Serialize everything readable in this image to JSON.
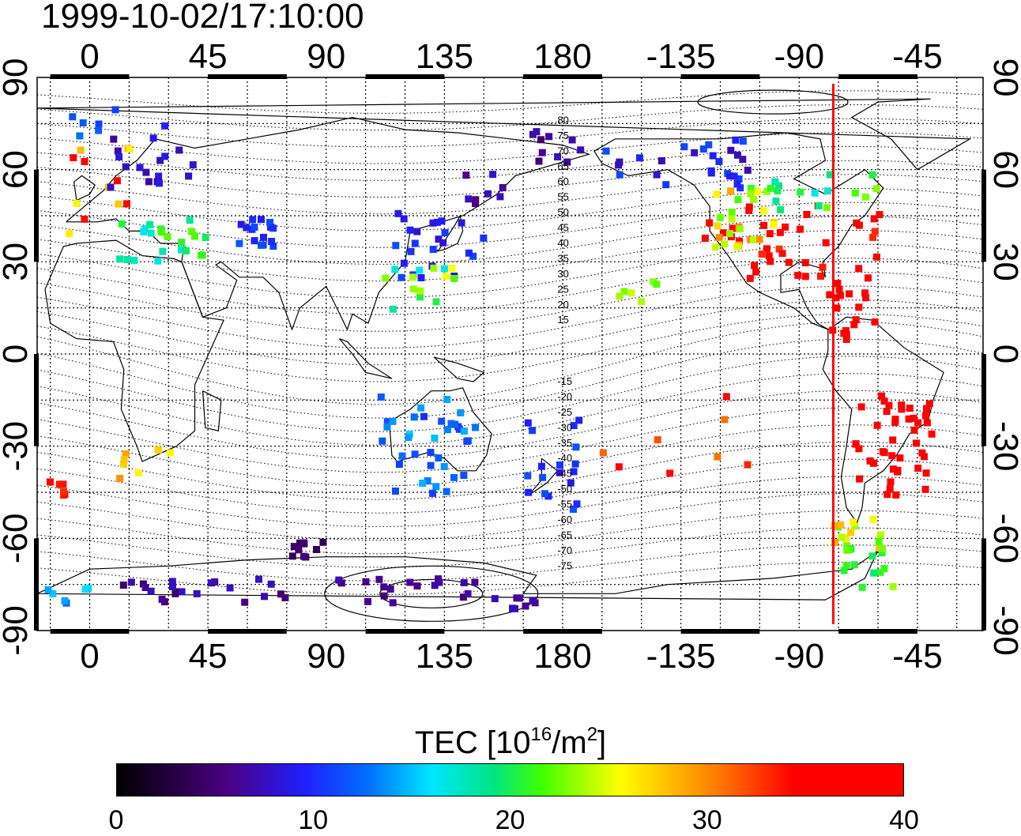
{
  "timestamp": "1999-10-02/17:10:00",
  "map": {
    "lon_ticks": [
      "0",
      "45",
      "90",
      "135",
      "180",
      "-135",
      "-90",
      "-45"
    ],
    "lat_ticks": [
      "90",
      "60",
      "30",
      "0",
      "-30",
      "-60",
      "-90"
    ],
    "lon_range": [
      -20,
      340
    ],
    "lat_range": [
      -90,
      90
    ],
    "subsolar_meridian_lon": -77,
    "contour_labels": [
      "80",
      "75",
      "70",
      "65",
      "60",
      "55",
      "50",
      "45",
      "40",
      "35",
      "30",
      "25",
      "20",
      "15",
      "-15",
      "-20",
      "-25",
      "-30",
      "-35",
      "-40",
      "-45",
      "-50",
      "-55",
      "-60",
      "-65",
      "-70",
      "-75"
    ]
  },
  "colorbar": {
    "title": "TEC  [10",
    "title_exp": "16",
    "title_unit": "/m",
    "title_unit_exp": "2",
    "title_close": "]",
    "ticks": [
      "0",
      "10",
      "20",
      "30",
      "40"
    ],
    "range": [
      0,
      40
    ]
  },
  "colors": {
    "subsolar_line": "#ff0000"
  }
}
